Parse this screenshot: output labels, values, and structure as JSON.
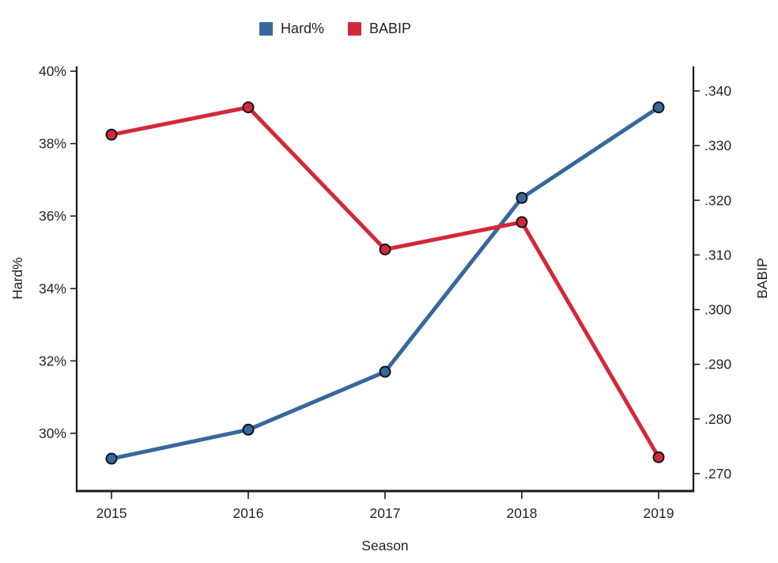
{
  "legend": [
    {
      "label": "Hard%",
      "color": "#36689d"
    },
    {
      "label": "BABIP",
      "color": "#d2293a"
    }
  ],
  "chart_data": {
    "type": "line",
    "title": "",
    "x": [
      2015,
      2016,
      2017,
      2018,
      2019
    ],
    "xlabel": "Season",
    "series": [
      {
        "name": "Hard%",
        "axis": "left",
        "color": "#36689d",
        "marker": "circle",
        "marker_outline": "#131313",
        "values": [
          29.3,
          30.1,
          31.7,
          36.5,
          39.0
        ]
      },
      {
        "name": "BABIP",
        "axis": "right",
        "color": "#d2293a",
        "marker": "circle",
        "marker_outline": "#131313",
        "values": [
          0.332,
          0.337,
          0.311,
          0.316,
          0.273
        ]
      }
    ],
    "left_axis": {
      "label": "Hard%",
      "tick_labels": [
        "30%",
        "32%",
        "34%",
        "36%",
        "38%",
        "40%"
      ],
      "tick_values": [
        30,
        32,
        34,
        36,
        38,
        40
      ],
      "range_approx": [
        28.4,
        40.1
      ]
    },
    "right_axis": {
      "label": "BABIP",
      "tick_labels": [
        ".270",
        ".280",
        ".290",
        ".300",
        ".310",
        ".320",
        ".330",
        ".340"
      ],
      "tick_values": [
        0.27,
        0.28,
        0.29,
        0.3,
        0.31,
        0.32,
        0.33,
        0.34
      ],
      "range_approx": [
        0.267,
        0.344
      ]
    },
    "grid": false,
    "legend_position": "top-center",
    "axis_color": "#1a1a1a"
  }
}
